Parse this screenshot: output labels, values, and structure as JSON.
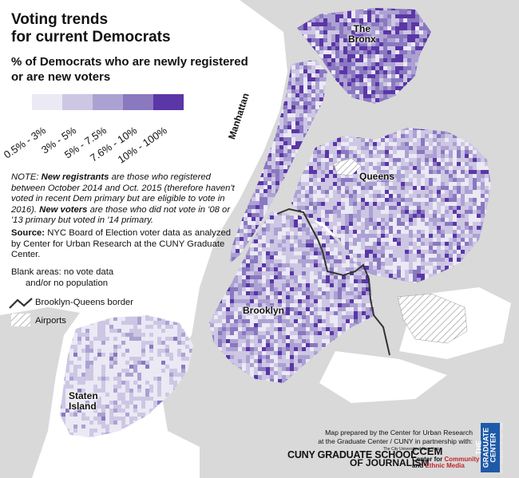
{
  "title": {
    "line1": "Voting trends",
    "line2": "for current Democrats"
  },
  "subtitle": {
    "line1": "% of Democrats who are newly registered",
    "line2": "or are new voters"
  },
  "legend": {
    "bins": [
      {
        "label": "0.5% - 3%",
        "color": "#ebe9f4"
      },
      {
        "label": "3% - 5%",
        "color": "#cdc7e4"
      },
      {
        "label": "5% - 7.5%",
        "color": "#aca1d3"
      },
      {
        "label": "7.6% - 10%",
        "color": "#8a78c0"
      },
      {
        "label": "10% - 100%",
        "color": "#5b36a6"
      }
    ]
  },
  "note": {
    "prefix": "NOTE: ",
    "term1": "New registrants",
    "text1": " are those who registered between October 2014 and Oct. 2015 (therefore haven't voted in recent Dem primary but are eligible to vote in 2016). ",
    "term2": "New voters",
    "text2": " are those who did not vote in '08 or '13 primary but voted in '14 primary."
  },
  "source": {
    "label": "Source:",
    "text": " NYC Board of Election voter data as analyzed by Center for Urban Research at the CUNY Graduate Center."
  },
  "blank_areas": {
    "line1": "Blank areas: no vote data",
    "line2": "and/or no population"
  },
  "border_key": "Brooklyn-Queens border",
  "airports_key": "Airports",
  "boroughs": {
    "bronx_1": "The",
    "bronx_2": "Bronx",
    "manhattan": "Manhattan",
    "queens": "Queens",
    "brooklyn": "Brooklyn",
    "staten_1": "Staten",
    "staten_2": "Island"
  },
  "credit": {
    "line1": "Map prepared by the Center for Urban Research",
    "line2": "at the Graduate Center / CUNY in partnership with:"
  },
  "logos": {
    "cuny_small": "The City University of New York",
    "cuny_a": "CUNY GRADUATE SCHOOL",
    "cuny_b": "OF JOURNALISM",
    "ccem_a": "CCEM",
    "ccem_b1": "Center for",
    "ccem_b2": "Community",
    "ccem_c1": "and",
    "ccem_c2": "Ethnic Media",
    "gc_1": "THE",
    "gc_2": "GRADUATE",
    "gc_3": "CENTER",
    "gc_4": "CITY UNIVERSITY OF NEW YORK"
  },
  "colors": {
    "background": "#ffffff",
    "non_data_land": "#d9d9d9",
    "border_line": "#333333",
    "airport_hatch": "#888888",
    "logo_blue": "#1e5aa8",
    "logo_red": "#c0272d"
  }
}
